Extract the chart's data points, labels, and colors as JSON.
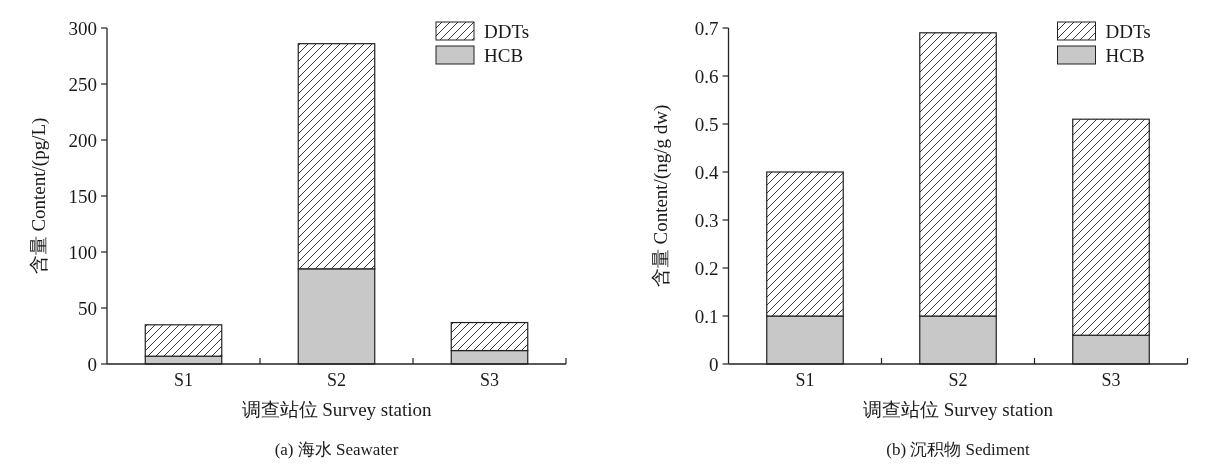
{
  "chart_data": [
    {
      "type": "bar",
      "title": "(a) 海水 Seawater",
      "xlabel": "调查站位 Survey station",
      "ylabel": "含量 Content/(pg/L)",
      "categories": [
        "S1",
        "S2",
        "S3"
      ],
      "stacked": true,
      "legend": "top right",
      "grid": false,
      "ylim": [
        0,
        300
      ],
      "yticks": [
        0,
        50,
        100,
        150,
        200,
        250,
        300
      ],
      "series": [
        {
          "name": "HCB",
          "color": "#c8c8c8",
          "values": [
            7,
            85,
            12
          ]
        },
        {
          "name": "DDTs",
          "color": "#ffffff",
          "values": [
            28,
            201,
            25
          ]
        }
      ]
    },
    {
      "type": "bar",
      "title": "(b) 沉积物 Sediment",
      "xlabel": "调查站位 Survey station",
      "ylabel": "含量 Content/(ng/g dw)",
      "categories": [
        "S1",
        "S2",
        "S3"
      ],
      "stacked": true,
      "legend": "top right",
      "grid": false,
      "ylim": [
        0,
        0.7
      ],
      "yticks": [
        0,
        0.1,
        0.2,
        0.3,
        0.4,
        0.5,
        0.6,
        0.7
      ],
      "series": [
        {
          "name": "HCB",
          "color": "#c8c8c8",
          "values": [
            0.1,
            0.1,
            0.06
          ]
        },
        {
          "name": "DDTs",
          "color": "#ffffff",
          "values": [
            0.3,
            0.59,
            0.45
          ]
        }
      ]
    }
  ]
}
